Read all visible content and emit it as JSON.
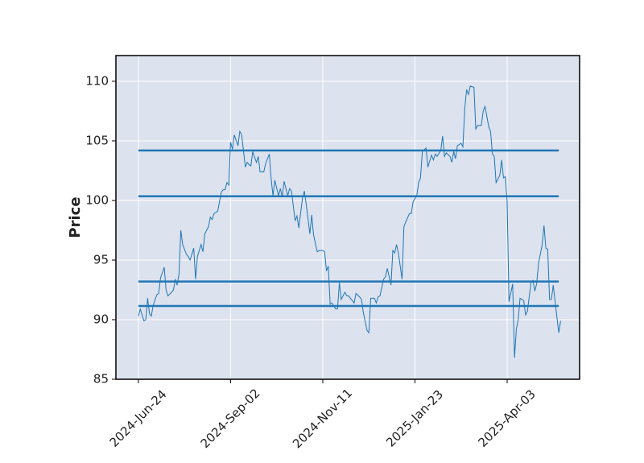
{
  "chart_data": {
    "type": "line",
    "ylabel": "Price",
    "x": [
      0,
      1,
      3,
      4,
      5,
      6,
      7,
      8,
      10,
      11,
      12,
      14,
      15,
      16,
      18,
      19,
      20,
      21,
      22,
      23,
      24,
      26,
      27,
      28,
      30,
      31,
      32,
      34,
      35,
      36,
      38,
      39,
      40,
      41,
      43,
      45,
      46,
      47,
      48,
      49,
      50,
      51,
      52,
      54,
      55,
      56,
      58,
      59,
      60,
      61,
      62,
      64,
      65,
      66,
      68,
      69,
      71,
      72,
      73,
      74,
      76,
      77,
      78,
      79,
      81,
      82,
      83,
      85,
      86,
      87,
      89,
      90,
      91,
      93,
      94,
      95,
      97,
      98,
      100,
      101,
      102,
      103,
      104,
      105,
      107,
      108,
      109,
      110,
      112,
      113,
      114,
      116,
      117,
      118,
      120,
      121,
      122,
      124,
      125,
      126,
      128,
      129,
      130,
      131,
      133,
      134,
      135,
      137,
      138,
      139,
      140,
      141,
      143,
      144,
      145,
      147,
      148,
      149,
      151,
      152,
      153,
      154,
      156,
      157,
      159,
      160,
      161,
      162,
      164,
      165,
      166,
      167,
      169,
      170,
      171,
      172,
      173,
      175,
      176,
      177,
      178,
      179,
      180,
      182,
      183,
      184,
      186,
      187,
      188,
      190,
      191,
      192,
      193,
      194,
      196,
      197,
      198,
      199,
      200,
      201,
      203,
      204,
      205,
      206,
      207,
      209,
      210,
      211,
      213,
      214,
      215,
      216,
      217,
      219,
      220,
      221,
      222,
      223,
      224,
      225,
      227,
      228,
      229
    ],
    "values": [
      90.3,
      90.9,
      89.9,
      90.0,
      91.8,
      90.5,
      90.3,
      91.2,
      92.1,
      92.2,
      93.5,
      94.4,
      92.5,
      92.0,
      92.3,
      92.5,
      93.4,
      92.9,
      93.8,
      97.5,
      96.3,
      95.5,
      95.3,
      95.0,
      96.0,
      93.4,
      95.3,
      96.3,
      95.7,
      97.2,
      97.8,
      98.6,
      98.4,
      98.9,
      99.1,
      100.7,
      100.9,
      100.9,
      101.5,
      101.3,
      104.9,
      104.3,
      105.5,
      104.6,
      105.8,
      105.5,
      102.8,
      103.2,
      103.0,
      102.9,
      104.1,
      103.2,
      103.7,
      102.4,
      102.4,
      103.1,
      103.9,
      101.8,
      100.4,
      101.7,
      100.4,
      101.0,
      100.3,
      101.6,
      100.4,
      101.0,
      100.8,
      98.3,
      98.7,
      97.7,
      100.2,
      100.8,
      99.7,
      97.2,
      98.8,
      97.1,
      95.7,
      95.8,
      95.8,
      95.7,
      94.1,
      94.5,
      91.3,
      91.4,
      90.9,
      90.9,
      93.1,
      91.7,
      92.3,
      92.0,
      92.0,
      91.6,
      91.4,
      92.2,
      91.9,
      91.7,
      90.6,
      89.1,
      88.9,
      91.8,
      91.8,
      91.4,
      91.9,
      92.0,
      93.4,
      93.6,
      94.3,
      92.9,
      95.8,
      95.6,
      96.3,
      95.6,
      93.4,
      97.8,
      98.2,
      98.9,
      98.9,
      99.9,
      100.4,
      101.5,
      101.9,
      104.1,
      104.4,
      102.8,
      103.8,
      103.4,
      103.9,
      103.7,
      104.2,
      105.4,
      103.7,
      104.0,
      103.7,
      103.2,
      104.1,
      103.5,
      104.6,
      104.8,
      104.5,
      107.7,
      109.3,
      108.9,
      109.6,
      109.5,
      106.0,
      106.3,
      106.3,
      107.5,
      107.9,
      106.2,
      105.8,
      103.9,
      103.7,
      101.5,
      102.1,
      103.4,
      101.9,
      102.0,
      99.9,
      91.5,
      93.0,
      86.8,
      89.2,
      90.0,
      91.8,
      91.6,
      90.4,
      90.7,
      93.2,
      93.3,
      92.4,
      93.0,
      94.7,
      96.3,
      97.9,
      96.0,
      95.9,
      91.7,
      91.7,
      92.9,
      90.2,
      88.9,
      89.9
    ],
    "color": "#1f77b4",
    "hlines": {
      "y": [
        104.2,
        100.35,
        93.2,
        91.15
      ],
      "xmin": 0,
      "xmax": 228,
      "color": "#1f77b4"
    },
    "xlim": [
      -12.2,
      239.3
    ],
    "xticks": [
      {
        "value": 0,
        "label": "2024-Jun-24"
      },
      {
        "value": 50,
        "label": "2024-Sep-02"
      },
      {
        "value": 100,
        "label": "2024-Nov-11"
      },
      {
        "value": 150,
        "label": "2025-Jan-23"
      },
      {
        "value": 200,
        "label": "2025-Apr-03"
      }
    ],
    "ylim": [
      85,
      112.16
    ],
    "yticks": [
      85,
      90,
      95,
      100,
      105,
      110
    ],
    "grid": true
  }
}
